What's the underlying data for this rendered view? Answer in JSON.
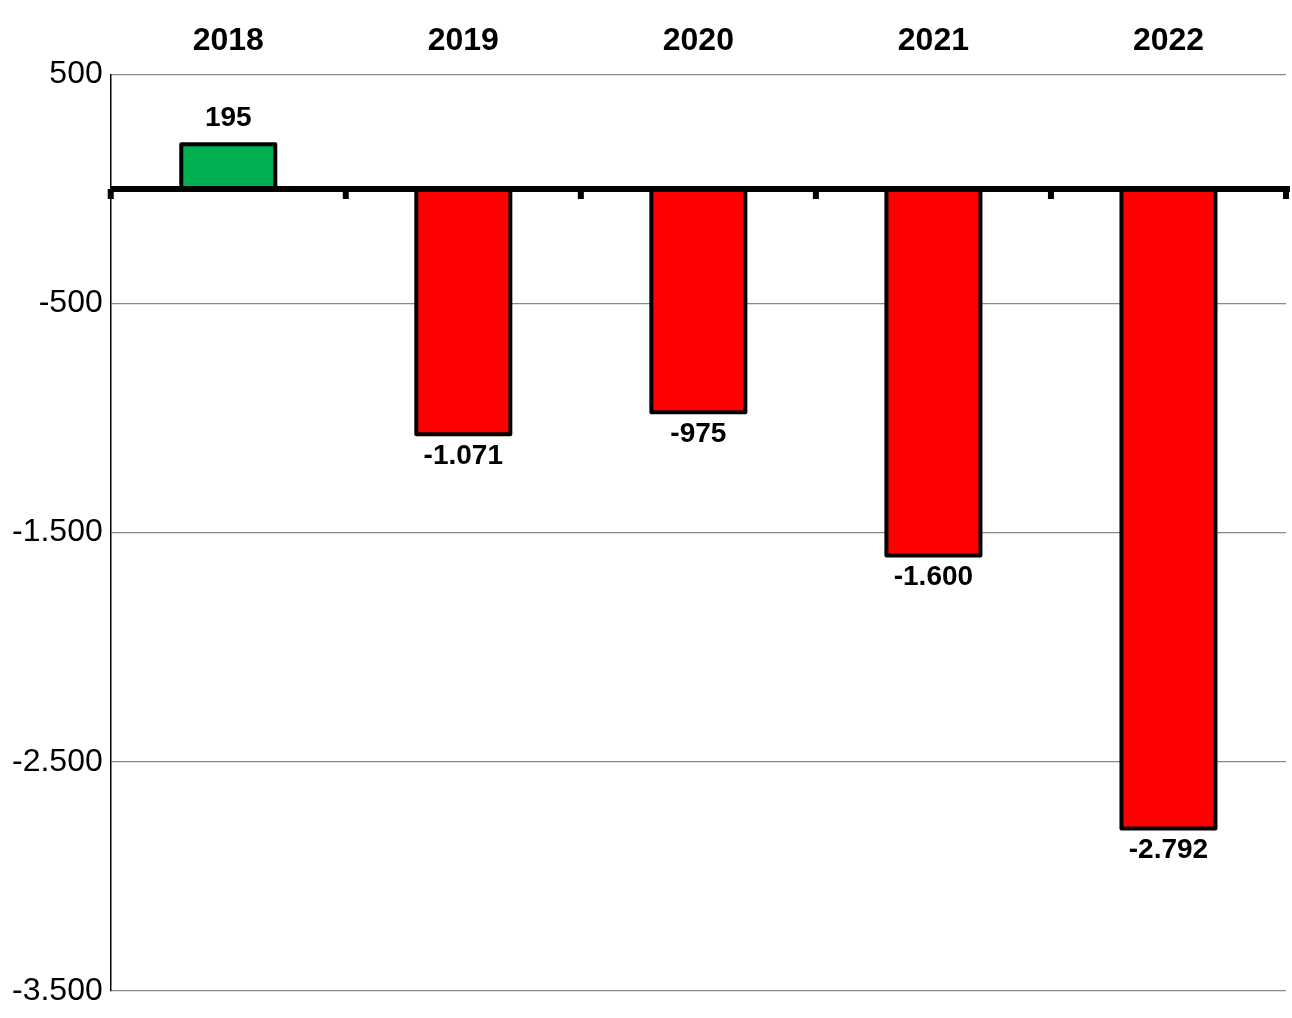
{
  "chart_data": {
    "type": "bar",
    "categories": [
      "2018",
      "2019",
      "2020",
      "2021",
      "2022"
    ],
    "values": [
      195,
      -1071,
      -975,
      -1600,
      -2792
    ],
    "colors": [
      "#00b050",
      "#ff0000",
      "#ff0000",
      "#ff0000",
      "#ff0000"
    ],
    "value_labels": [
      "195",
      "-1.071",
      "-975",
      "-1.600",
      "-2.792"
    ],
    "ylim": [
      -3500,
      500
    ],
    "yticks": [
      {
        "value": 500,
        "label": "500"
      },
      {
        "value": -500,
        "label": "-500"
      },
      {
        "value": -1500,
        "label": "-1.500"
      },
      {
        "value": -2500,
        "label": "-2.500"
      },
      {
        "value": -3500,
        "label": "-3.500"
      }
    ],
    "grid": "y",
    "legend": false
  }
}
